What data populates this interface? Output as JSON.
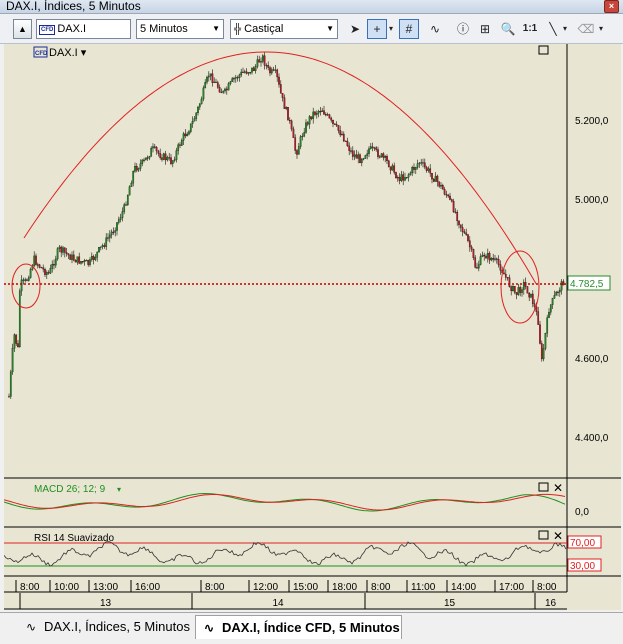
{
  "window": {
    "title": "DAX.I, Índices, 5 Minutos",
    "close_label": "×"
  },
  "toolbar": {
    "collapse_label": "▲",
    "symbol_badge": "CFD",
    "symbol": "DAX.I",
    "period": "5 Minutos",
    "chart_style": "Castiçal",
    "zoom_label": "1:1"
  },
  "chart": {
    "badge": "CFD",
    "symbol_label": "DAX.I ▾",
    "current_price": "4.782,5",
    "price_ticks": [
      "5.200,0",
      "5.000,0",
      "4.600,0",
      "4.400,0"
    ],
    "macd_label": "MACD 26; 12; 9",
    "macd_tick": "0,0",
    "rsi_label": "RSI 14 Suavizado",
    "rsi_upper": "70,00",
    "rsi_lower": "30,00",
    "time_labels": [
      "8:00",
      "10:00",
      "13:00",
      "16:00",
      "8:00",
      "12:00",
      "15:00",
      "18:00",
      "8:00",
      "11:00",
      "14:00",
      "17:00",
      "8:00"
    ],
    "day_labels": [
      "13",
      "14",
      "15",
      "16"
    ],
    "colors": {
      "background": "#e8e6d2",
      "up_candle": "#1f8f1f",
      "down_candle": "#c8141e",
      "trend_curve": "#e02020",
      "price_line": "#c00000"
    }
  },
  "tabs": [
    {
      "label": "DAX.I, Índices, 5 Minutos",
      "active": false
    },
    {
      "label": "DAX.I, Índice CFD, 5 Minutos",
      "active": true
    }
  ]
}
